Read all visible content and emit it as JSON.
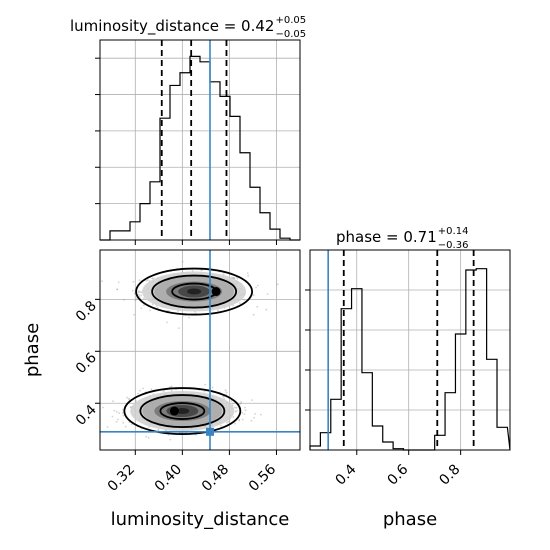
{
  "chart_data": [
    {
      "panel": "luminosity_distance marginal",
      "type": "histogram",
      "title": {
        "prefix": "luminosity_distance = 0.42",
        "sup": "+0.05",
        "sub": "−0.05"
      },
      "xlim": [
        0.26,
        0.6
      ],
      "truth": 0.447,
      "quantiles": [
        0.365,
        0.415,
        0.475
      ],
      "bin_edges": [
        0.26,
        0.277,
        0.294,
        0.311,
        0.328,
        0.345,
        0.362,
        0.379,
        0.396,
        0.413,
        0.43,
        0.447,
        0.464,
        0.481,
        0.498,
        0.515,
        0.532,
        0.549,
        0.566,
        0.583,
        0.6
      ],
      "counts": [
        0,
        5,
        5,
        10,
        20,
        32,
        67,
        85,
        92,
        101,
        98,
        87,
        79,
        68,
        48,
        29,
        15,
        6,
        1,
        0
      ],
      "grid": true
    },
    {
      "panel": "phase marginal",
      "type": "histogram",
      "title": {
        "prefix": "phase = 0.71",
        "sup": "+0.14",
        "sub": "−0.36"
      },
      "xlim": [
        0.22,
        0.99
      ],
      "xticks": [
        "0.4",
        "0.6",
        "0.8"
      ],
      "xlabel": "phase",
      "truth": 0.29,
      "quantiles": [
        0.35,
        0.71,
        0.85
      ],
      "bin_edges": [
        0.22,
        0.26,
        0.3,
        0.34,
        0.38,
        0.42,
        0.46,
        0.5,
        0.54,
        0.58,
        0.62,
        0.66,
        0.7,
        0.74,
        0.78,
        0.82,
        0.86,
        0.9,
        0.94,
        0.98
      ],
      "counts": [
        3,
        13,
        38,
        106,
        121,
        58,
        18,
        6,
        1,
        0,
        0,
        0,
        11,
        43,
        87,
        135,
        136,
        68,
        17
      ],
      "grid": true
    },
    {
      "panel": "2D density",
      "type": "scatter",
      "xlim": [
        0.26,
        0.6
      ],
      "ylim": [
        0.22,
        0.99
      ],
      "xticks": [
        "0.32",
        "0.40",
        "0.48",
        "0.56"
      ],
      "yticks": [
        "0.4",
        "0.6",
        "0.8"
      ],
      "xlabel": "luminosity_distance",
      "ylabel": "phase",
      "truth": {
        "x": 0.447,
        "y": 0.29
      },
      "modes": [
        {
          "x": 0.42,
          "y": 0.83
        },
        {
          "x": 0.4,
          "y": 0.37
        }
      ],
      "grid": true
    }
  ]
}
